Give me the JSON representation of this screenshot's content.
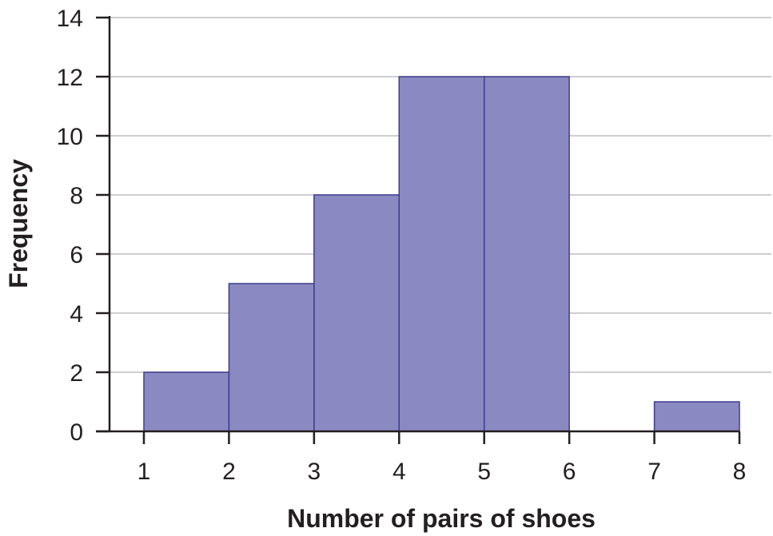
{
  "chart_data": {
    "type": "bar",
    "subtype": "histogram",
    "title": "",
    "xlabel": "Number of pairs of shoes",
    "ylabel": "Frequency",
    "bins": [
      {
        "start": 1,
        "end": 2,
        "value": 2
      },
      {
        "start": 2,
        "end": 3,
        "value": 5
      },
      {
        "start": 3,
        "end": 4,
        "value": 8
      },
      {
        "start": 4,
        "end": 5,
        "value": 12
      },
      {
        "start": 5,
        "end": 6,
        "value": 12
      },
      {
        "start": 6,
        "end": 7,
        "value": 0
      },
      {
        "start": 7,
        "end": 8,
        "value": 1
      }
    ],
    "x_ticks": [
      "1",
      "2",
      "3",
      "4",
      "5",
      "6",
      "7",
      "8"
    ],
    "y_ticks": [
      "0",
      "2",
      "4",
      "6",
      "8",
      "10",
      "12",
      "14"
    ],
    "xlim": [
      1,
      8
    ],
    "ylim": [
      0,
      14
    ],
    "grid": "horizontal",
    "legend": "none",
    "colors": {
      "bar_fill": "#8b89c1",
      "bar_stroke": "#3f3c8c",
      "axis": "#231f20",
      "grid": "#bcbec0"
    }
  }
}
